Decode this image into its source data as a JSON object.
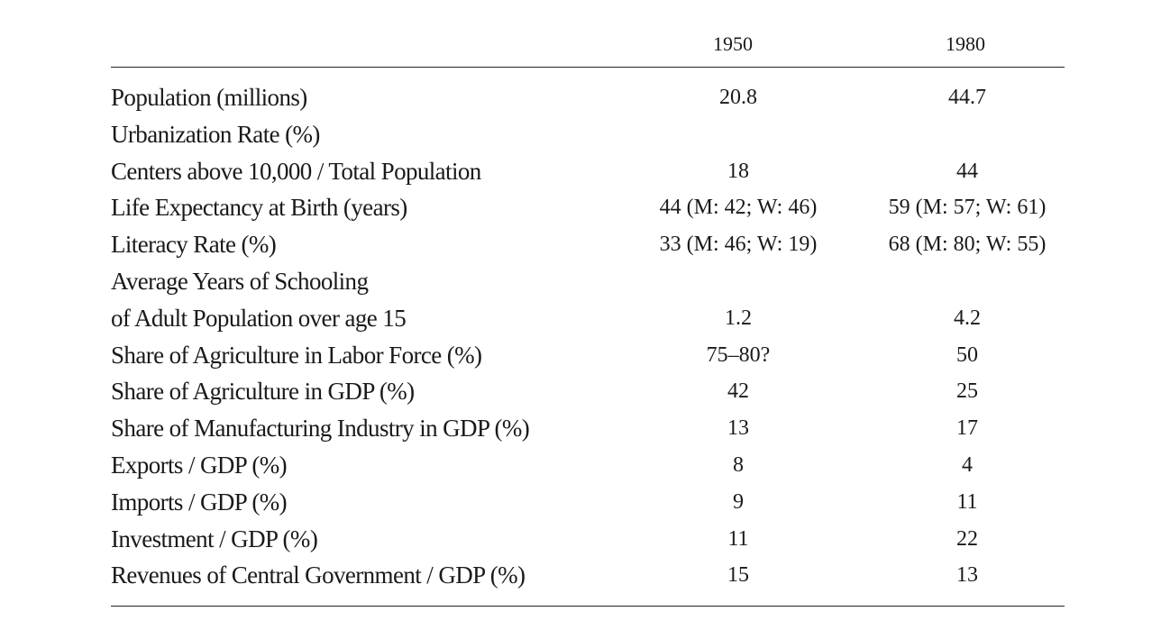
{
  "table": {
    "columns": [
      "1950",
      "1980"
    ],
    "rows": [
      {
        "label": "Population (millions)",
        "v1950": "20.8",
        "v1980": "44.7"
      },
      {
        "label": "Urbanization Rate (%)",
        "v1950": "",
        "v1980": ""
      },
      {
        "label": "Centers above 10,000 / Total Population",
        "v1950": "18",
        "v1980": "44"
      },
      {
        "label": "Life Expectancy at Birth (years)",
        "v1950": "44 (M: 42; W: 46)",
        "v1980": "59 (M: 57; W: 61)"
      },
      {
        "label": "Literacy Rate (%)",
        "v1950": "33 (M: 46; W: 19)",
        "v1980": "68 (M: 80; W: 55)"
      },
      {
        "label": "Average Years of Schooling",
        "v1950": "",
        "v1980": ""
      },
      {
        "label": "of Adult Population over age 15",
        "v1950": "1.2",
        "v1980": "4.2"
      },
      {
        "label": "Share of Agriculture in Labor Force (%)",
        "v1950": "75–80?",
        "v1980": "50"
      },
      {
        "label": "Share of Agriculture in GDP (%)",
        "v1950": "42",
        "v1980": "25"
      },
      {
        "label": "Share of Manufacturing Industry in GDP (%)",
        "v1950": "13",
        "v1980": "17"
      },
      {
        "label": "Exports / GDP (%)",
        "v1950": "8",
        "v1980": "4"
      },
      {
        "label": "Imports / GDP (%)",
        "v1950": "9",
        "v1980": "11"
      },
      {
        "label": "Investment / GDP (%)",
        "v1950": "11",
        "v1980": "22"
      },
      {
        "label": "Revenues of Central Government / GDP (%)",
        "v1950": "15",
        "v1980": "13"
      }
    ]
  }
}
